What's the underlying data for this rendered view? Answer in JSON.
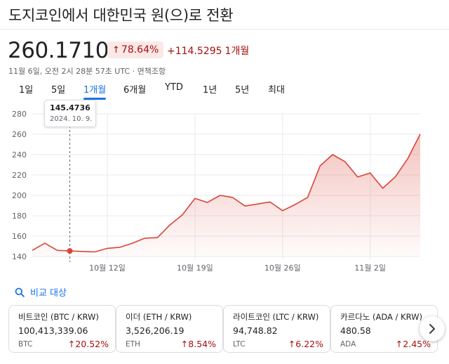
{
  "header": {
    "title": "도지코인에서 대한민국 원(으)로 전환"
  },
  "quote": {
    "price": "260.1710",
    "percent": "78.64%",
    "change": "+114.5295",
    "period": "1개월",
    "timestamp": "11월 6일, 오전 2시 28분 57초 UTC · 면책조항"
  },
  "tabs": [
    {
      "label": "1일"
    },
    {
      "label": "5일"
    },
    {
      "label": "1개월"
    },
    {
      "label": "6개월"
    },
    {
      "label": "YTD"
    },
    {
      "label": "1년"
    },
    {
      "label": "5년"
    },
    {
      "label": "최대"
    }
  ],
  "active_tab": "1개월",
  "tooltip": {
    "value": "145.4736",
    "date": "2024. 10. 9."
  },
  "colors": {
    "down_red": "#a50e0e",
    "line_red": "#db4437",
    "accent_blue": "#1a73e8"
  },
  "chart_data": {
    "type": "area",
    "y_ticks": [
      "280",
      "260",
      "240",
      "220",
      "200",
      "180",
      "160",
      "140"
    ],
    "ylim": [
      140,
      280
    ],
    "x_ticks": [
      {
        "label": "10월 12일",
        "day": 12
      },
      {
        "label": "10월 19일",
        "day": 19
      },
      {
        "label": "10월 26일",
        "day": 26
      },
      {
        "label": "11월 2일",
        "day": 33
      }
    ],
    "xlim": [
      6,
      37
    ],
    "grid": true,
    "hover_day": 9,
    "series": [
      {
        "days": [
          6,
          7,
          8,
          9,
          10,
          11,
          12,
          13,
          14,
          15,
          16,
          17,
          18,
          19,
          20,
          21,
          22,
          23,
          24,
          25,
          26,
          27,
          28,
          29,
          30,
          31,
          32,
          33,
          34,
          35,
          36,
          37
        ],
        "values": [
          146,
          153,
          146,
          145.47,
          145,
          144.5,
          148,
          149,
          153,
          158,
          158.5,
          171,
          181,
          197,
          193,
          200,
          198,
          189.5,
          191.5,
          193.5,
          185,
          191,
          198,
          229,
          240,
          233,
          218,
          222,
          207,
          218,
          236,
          260.17
        ]
      }
    ]
  },
  "compare": {
    "label": "비교 대상"
  },
  "cards": [
    {
      "name": "비트코인 (BTC / KRW)",
      "price": "100,413,339.06",
      "symbol": "BTC",
      "change": "20.52%"
    },
    {
      "name": "이더 (ETH / KRW)",
      "price": "3,526,206.19",
      "symbol": "ETH",
      "change": "8.54%"
    },
    {
      "name": "라이트코인 (LTC / KRW)",
      "price": "94,748.82",
      "symbol": "LTC",
      "change": "6.22%"
    },
    {
      "name": "카르다노 (ADA / KRW)",
      "price": "480.58",
      "symbol": "ADA",
      "change": "2.45%"
    }
  ],
  "icons": {
    "compare": "search-icon",
    "arrow_up": "arrow-up-icon",
    "next": "chevron-right-icon"
  }
}
